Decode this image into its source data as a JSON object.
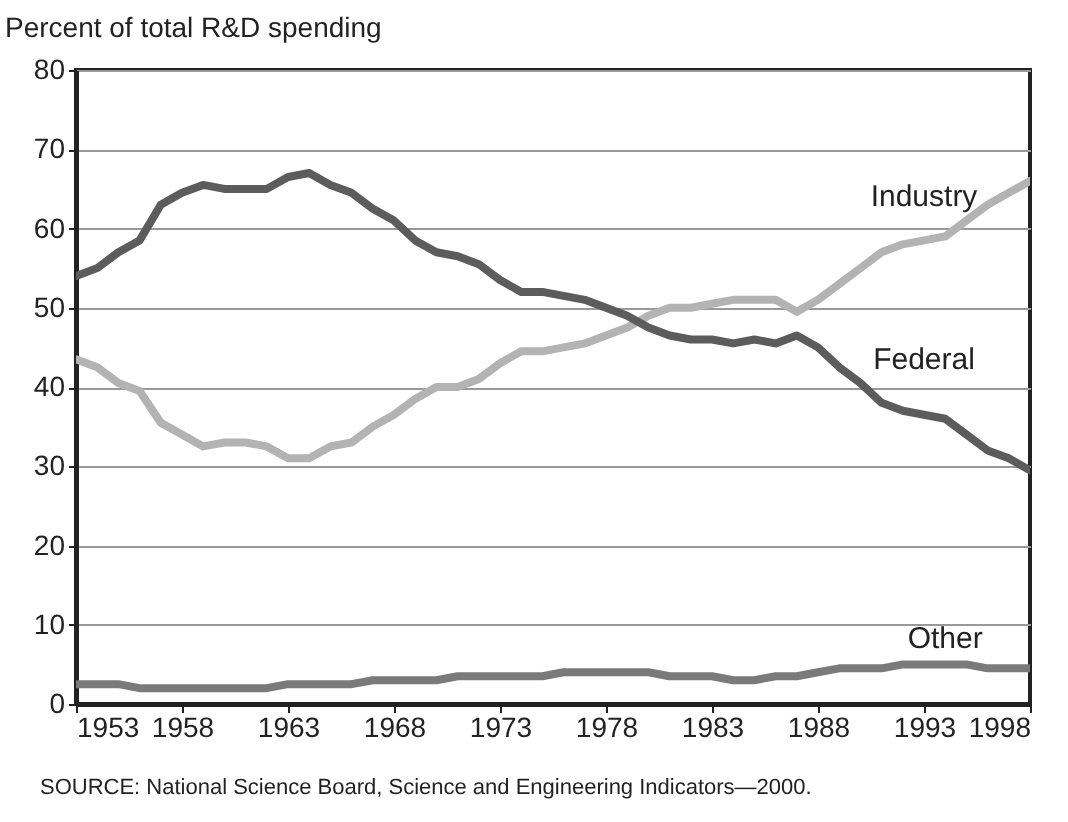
{
  "chart_data": {
    "type": "line",
    "ylabel": "Percent of total R&D spending",
    "x": [
      1953,
      1954,
      1955,
      1956,
      1957,
      1958,
      1959,
      1960,
      1961,
      1962,
      1963,
      1964,
      1965,
      1966,
      1967,
      1968,
      1969,
      1970,
      1971,
      1972,
      1973,
      1974,
      1975,
      1976,
      1977,
      1978,
      1979,
      1980,
      1981,
      1982,
      1983,
      1984,
      1985,
      1986,
      1987,
      1988,
      1989,
      1990,
      1991,
      1992,
      1993,
      1994,
      1995,
      1996,
      1997,
      1998
    ],
    "series": [
      {
        "name": "Industry",
        "color": "#b3b3b3",
        "values": [
          43.5,
          42.5,
          40.5,
          39.5,
          35.5,
          34,
          32.5,
          33,
          33,
          32.5,
          31,
          31,
          32.5,
          33,
          35,
          36.5,
          38.5,
          40,
          40,
          41,
          43,
          44.5,
          44.5,
          45,
          45.5,
          46.5,
          47.5,
          49,
          50,
          50,
          50.5,
          51,
          51,
          51,
          49.5,
          51,
          53,
          55,
          57,
          58,
          58.5,
          59,
          61,
          63,
          64.5,
          66
        ]
      },
      {
        "name": "Federal",
        "color": "#5c5c5c",
        "values": [
          54,
          55,
          57,
          58.5,
          63,
          64.5,
          65.5,
          65,
          65,
          65,
          66.5,
          67,
          65.5,
          64.5,
          62.5,
          61,
          58.5,
          57,
          56.5,
          55.5,
          53.5,
          52,
          52,
          51.5,
          51,
          50,
          49,
          47.5,
          46.5,
          46,
          46,
          45.5,
          46,
          45.5,
          46.5,
          45,
          42.5,
          40.5,
          38,
          37,
          36.5,
          36,
          34,
          32,
          31,
          29.5
        ]
      },
      {
        "name": "Other",
        "color": "#7a7a7a",
        "values": [
          2.5,
          2.5,
          2.5,
          2,
          2,
          2,
          2,
          2,
          2,
          2,
          2.5,
          2.5,
          2.5,
          2.5,
          3,
          3,
          3,
          3,
          3.5,
          3.5,
          3.5,
          3.5,
          3.5,
          4,
          4,
          4,
          4,
          4,
          3.5,
          3.5,
          3.5,
          3,
          3,
          3.5,
          3.5,
          4,
          4.5,
          4.5,
          4.5,
          5,
          5,
          5,
          5,
          4.5,
          4.5,
          4.5
        ]
      }
    ],
    "xlim": [
      1953,
      1998
    ],
    "xticks": [
      1953,
      1958,
      1963,
      1968,
      1973,
      1978,
      1983,
      1988,
      1993,
      1998
    ],
    "ylim": [
      0,
      80
    ],
    "yticks": [
      0,
      10,
      20,
      30,
      40,
      50,
      60,
      70,
      80
    ],
    "grid": "y",
    "marker": "none",
    "line_style": "solid",
    "legend": false,
    "annotations": [
      "SOURCE: National Science Board, Science and Engineering Indicators—2000."
    ]
  }
}
